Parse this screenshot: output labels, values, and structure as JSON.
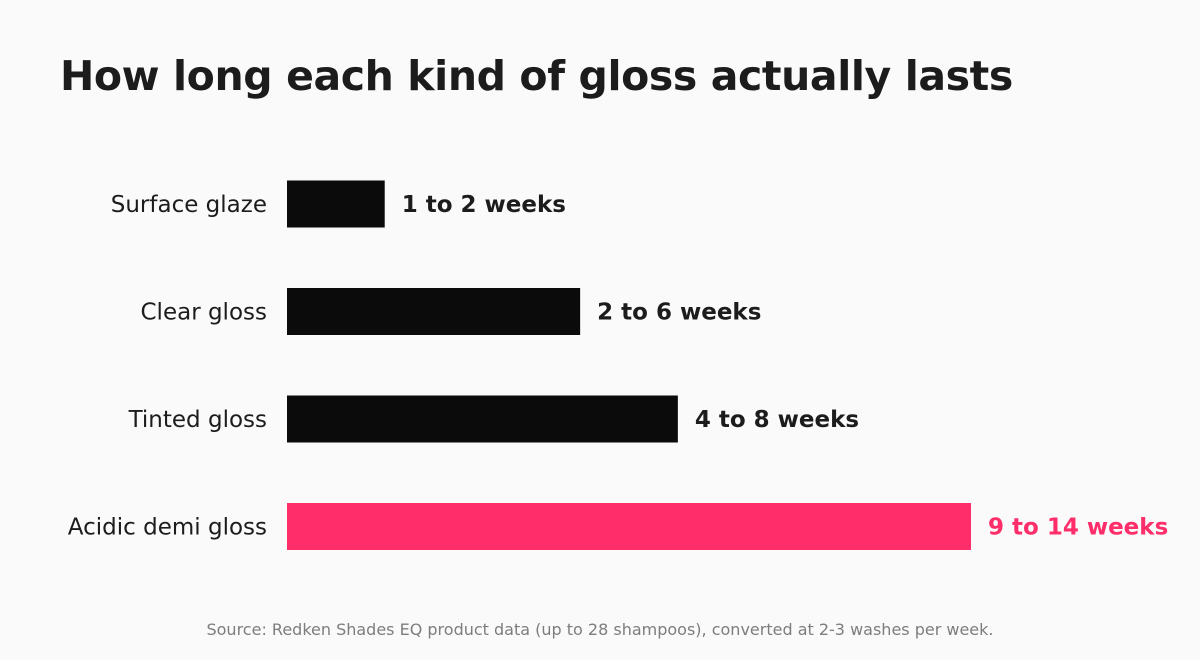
{
  "title": "How long each kind of gloss actually lasts",
  "source": "Source: Redken Shades EQ product data (up to 28 shampoos), converted at 2-3 washes per week.",
  "colors": {
    "bar_default": "#0b0b0b",
    "bar_highlight": "#ff2d6a",
    "label_default": "#1c1c1c",
    "background": "#f9faf9"
  },
  "chart_data": {
    "type": "bar",
    "orientation": "horizontal",
    "title": "How long each kind of gloss actually lasts",
    "xlabel": "",
    "ylabel": "",
    "grid": false,
    "xlim": [
      0,
      14
    ],
    "categories": [
      "Surface glaze",
      "Clear gloss",
      "Tinted gloss",
      "Acidic demi gloss"
    ],
    "values": [
      2,
      6,
      8,
      14
    ],
    "data_labels": [
      "1 to 2 weeks",
      "2 to 6 weeks",
      "4 to 8 weeks",
      "9 to 14 weeks"
    ],
    "highlight_index": 3
  }
}
